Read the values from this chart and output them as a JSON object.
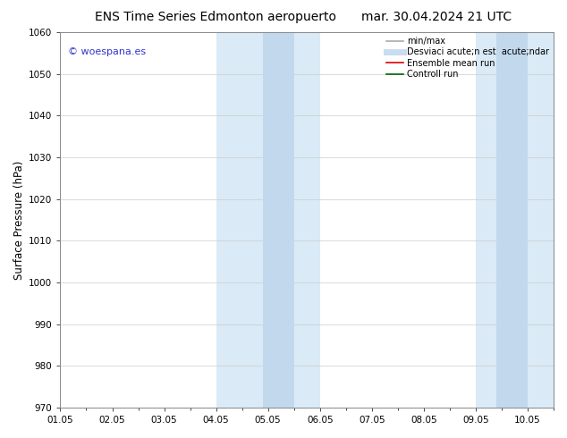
{
  "title_left": "ENS Time Series Edmonton aeropuerto",
  "title_right": "mar. 30.04.2024 21 UTC",
  "ylabel": "Surface Pressure (hPa)",
  "xlim": [
    0.0,
    9.5
  ],
  "ylim": [
    970,
    1060
  ],
  "yticks": [
    970,
    980,
    990,
    1000,
    1010,
    1020,
    1030,
    1040,
    1050,
    1060
  ],
  "xtick_labels": [
    "01.05",
    "02.05",
    "03.05",
    "04.05",
    "05.05",
    "06.05",
    "07.05",
    "08.05",
    "09.05",
    "10.05"
  ],
  "xtick_positions": [
    0,
    1,
    2,
    3,
    4,
    5,
    6,
    7,
    8,
    9
  ],
  "shaded_regions": [
    {
      "xmin": 3.0,
      "xmax": 5.0,
      "color": "#daeaf6"
    },
    {
      "xmin": 8.0,
      "xmax": 9.5,
      "color": "#daeaf6"
    }
  ],
  "shaded_regions_inner": [
    {
      "xmin": 3.9,
      "xmax": 4.5,
      "color": "#c2d8ed"
    },
    {
      "xmin": 8.4,
      "xmax": 9.0,
      "color": "#c2d8ed"
    }
  ],
  "watermark_text": "© woespana.es",
  "watermark_color": "#3333cc",
  "legend_entries": [
    {
      "label": "min/max",
      "color": "#aaaaaa",
      "lw": 1.2
    },
    {
      "label": "Desviaci acute;n est  acute;ndar",
      "color": "#c8ddf0",
      "lw": 5
    },
    {
      "label": "Ensemble mean run",
      "color": "#dd0000",
      "lw": 1.2
    },
    {
      "label": "Controll run",
      "color": "#006600",
      "lw": 1.2
    }
  ],
  "bg_color": "#ffffff",
  "plot_bg_color": "#ffffff",
  "grid_color": "#cccccc",
  "title_fontsize": 10,
  "tick_fontsize": 7.5,
  "ylabel_fontsize": 8.5,
  "watermark_fontsize": 8,
  "legend_fontsize": 7
}
